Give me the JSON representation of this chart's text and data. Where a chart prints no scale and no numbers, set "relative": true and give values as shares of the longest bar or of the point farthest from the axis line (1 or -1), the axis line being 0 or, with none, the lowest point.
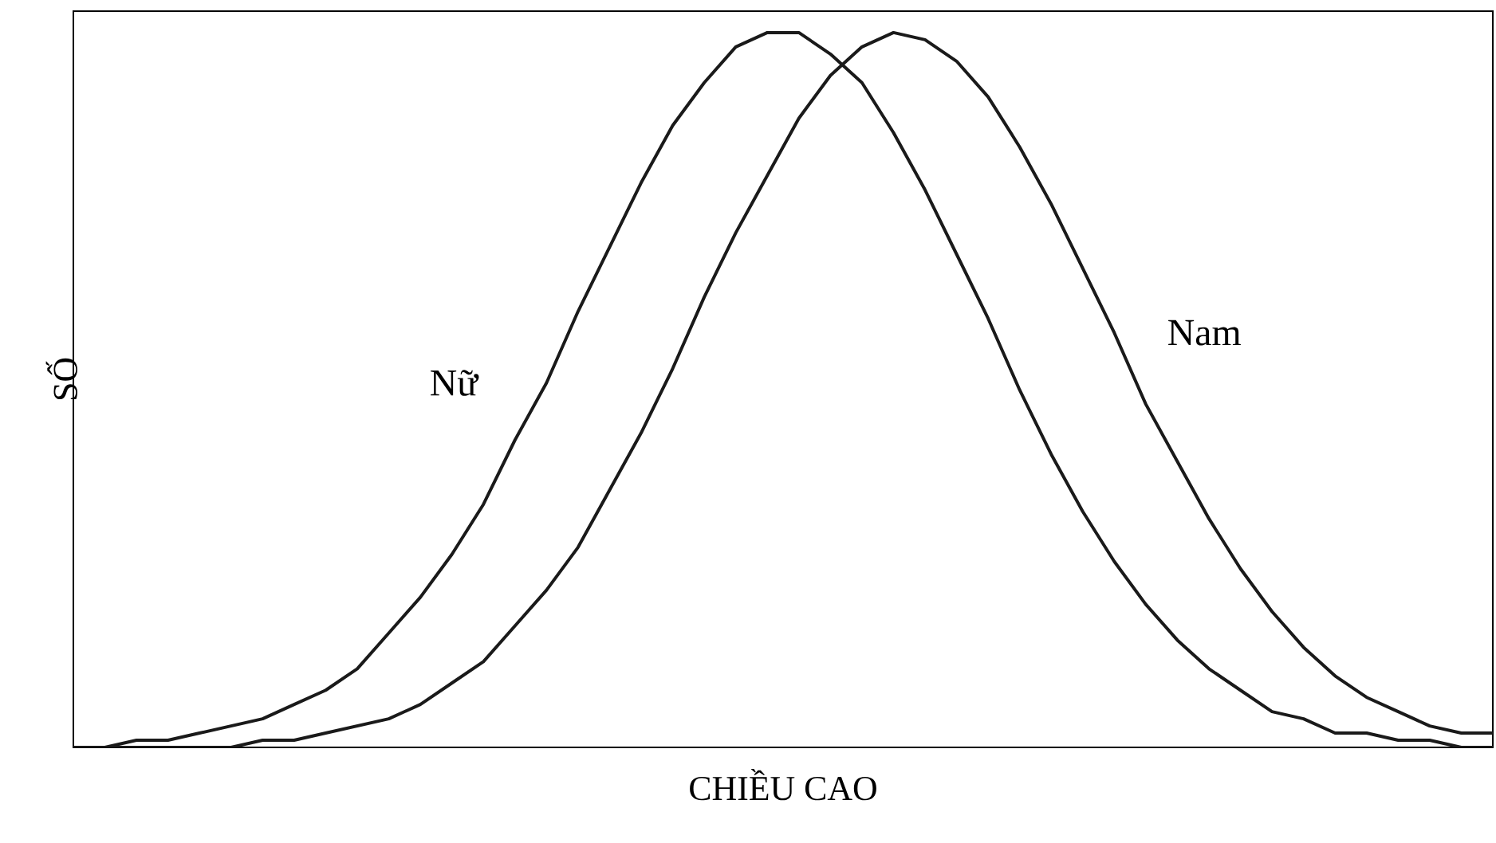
{
  "chart_data": {
    "type": "line",
    "relative": true,
    "xlabel": "CHIỀU CAO",
    "ylabel": "SỐ",
    "legend": false,
    "marker": "none",
    "line_style": "solid",
    "categories": [
      null,
      null,
      null,
      null,
      null,
      null,
      null,
      null,
      null,
      null,
      null,
      null,
      null,
      null,
      null,
      null,
      null,
      null,
      null,
      null,
      null,
      null,
      null,
      null,
      null,
      null,
      null,
      null,
      null,
      null,
      null,
      null,
      null,
      null,
      null,
      null,
      null,
      null,
      null,
      null,
      null,
      null,
      null,
      null,
      null,
      null
    ],
    "series": [
      {
        "name": "Nữ",
        "color": "#1a1a1a",
        "values": [
          0.0,
          0.0,
          0.01,
          0.01,
          0.02,
          0.03,
          0.04,
          0.06,
          0.08,
          0.11,
          0.16,
          0.21,
          0.27,
          0.34,
          0.43,
          0.51,
          0.61,
          0.7,
          0.79,
          0.87,
          0.93,
          0.98,
          1.0,
          1.0,
          0.97,
          0.93,
          0.86,
          0.78,
          0.69,
          0.6,
          0.5,
          0.41,
          0.33,
          0.26,
          0.2,
          0.15,
          0.11,
          0.08,
          0.05,
          0.04,
          0.02,
          0.02,
          0.01,
          0.01,
          0.0,
          0.0
        ]
      },
      {
        "name": "Nam",
        "color": "#1a1a1a",
        "values": [
          0.0,
          0.0,
          0.0,
          0.0,
          0.0,
          0.0,
          0.01,
          0.01,
          0.02,
          0.03,
          0.04,
          0.06,
          0.09,
          0.12,
          0.17,
          0.22,
          0.28,
          0.36,
          0.44,
          0.53,
          0.63,
          0.72,
          0.8,
          0.88,
          0.94,
          0.98,
          1.0,
          0.99,
          0.96,
          0.91,
          0.84,
          0.76,
          0.67,
          0.58,
          0.48,
          0.4,
          0.32,
          0.25,
          0.19,
          0.14,
          0.1,
          0.07,
          0.05,
          0.03,
          0.02,
          0.02
        ]
      }
    ]
  }
}
